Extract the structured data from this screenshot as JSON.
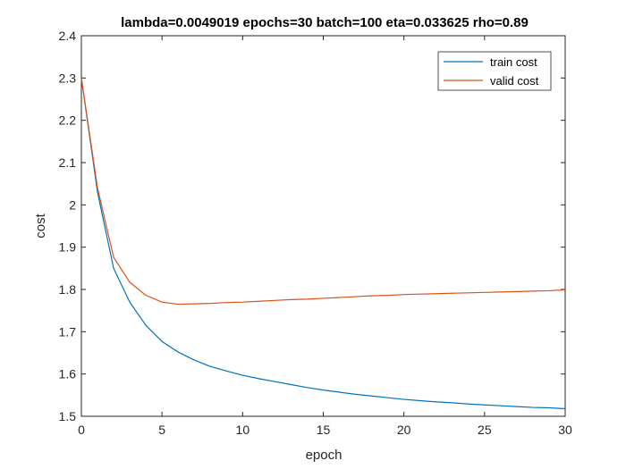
{
  "chart_data": {
    "type": "line",
    "title": "lambda=0.0049019 epochs=30 batch=100 eta=0.033625 rho=0.89",
    "xlabel": "epoch",
    "ylabel": "cost",
    "xlim": [
      0,
      30
    ],
    "ylim": [
      1.5,
      2.4
    ],
    "xticks": [
      "0",
      "5",
      "10",
      "15",
      "20",
      "25",
      "30"
    ],
    "yticks": [
      "1.5",
      "1.6",
      "1.7",
      "1.8",
      "1.9",
      "2",
      "2.1",
      "2.2",
      "2.3",
      "2.4"
    ],
    "grid": false,
    "legend_position": "top-right",
    "x": [
      0,
      1,
      2,
      3,
      4,
      5,
      6,
      7,
      8,
      9,
      10,
      11,
      12,
      13,
      14,
      15,
      16,
      17,
      18,
      19,
      20,
      21,
      22,
      23,
      24,
      25,
      26,
      27,
      28,
      29,
      30
    ],
    "series": [
      {
        "name": "train cost",
        "color": "#0072BD",
        "values": [
          2.3,
          2.03,
          1.85,
          1.77,
          1.715,
          1.677,
          1.652,
          1.633,
          1.618,
          1.607,
          1.597,
          1.589,
          1.582,
          1.575,
          1.568,
          1.562,
          1.557,
          1.552,
          1.548,
          1.544,
          1.54,
          1.537,
          1.534,
          1.532,
          1.529,
          1.527,
          1.525,
          1.523,
          1.521,
          1.52,
          1.518
        ]
      },
      {
        "name": "valid cost",
        "color": "#D95319",
        "values": [
          2.3,
          2.04,
          1.876,
          1.817,
          1.786,
          1.77,
          1.765,
          1.766,
          1.767,
          1.769,
          1.77,
          1.772,
          1.774,
          1.776,
          1.777,
          1.779,
          1.781,
          1.783,
          1.785,
          1.786,
          1.788,
          1.789,
          1.79,
          1.791,
          1.792,
          1.793,
          1.794,
          1.795,
          1.796,
          1.797,
          1.799
        ]
      }
    ]
  }
}
